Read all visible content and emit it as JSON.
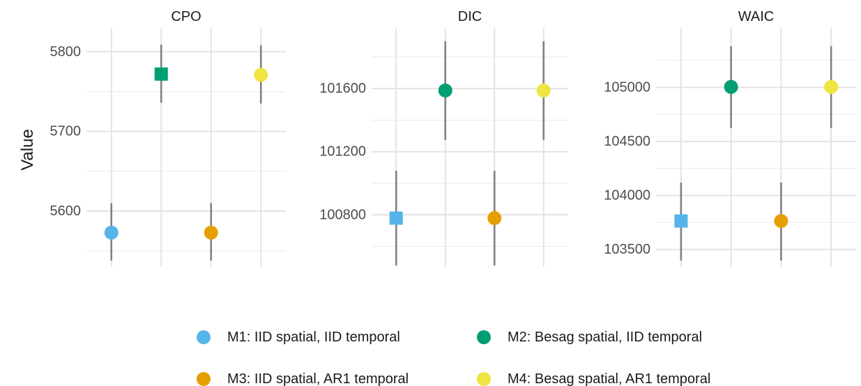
{
  "chart_data": {
    "type": "scatter",
    "ylabel": "Value",
    "models": [
      "M1",
      "M2",
      "M3",
      "M4"
    ],
    "legend": {
      "position": "bottom",
      "entries": [
        {
          "key": "M1",
          "label": "M1: IID spatial, IID temporal",
          "color": "#56B4E9"
        },
        {
          "key": "M2",
          "label": "M2: Besag spatial, IID temporal",
          "color": "#009E73"
        },
        {
          "key": "M3",
          "label": "M3: IID spatial, AR1 temporal",
          "color": "#E69F00"
        },
        {
          "key": "M4",
          "label": "M4: Besag spatial, AR1 temporal",
          "color": "#F0E442"
        }
      ]
    },
    "grid": true,
    "errorbar_color": "#808080",
    "panels": [
      {
        "title": "CPO",
        "ylim": [
          5530,
          5830
        ],
        "yticks": [
          5600,
          5700,
          5800
        ],
        "points": [
          {
            "model": "M1",
            "value": 5573,
            "lower": 5538,
            "upper": 5610,
            "shape": "circle"
          },
          {
            "model": "M2",
            "value": 5772,
            "lower": 5736,
            "upper": 5809,
            "shape": "square"
          },
          {
            "model": "M3",
            "value": 5573,
            "lower": 5538,
            "upper": 5610,
            "shape": "circle"
          },
          {
            "model": "M4",
            "value": 5771,
            "lower": 5735,
            "upper": 5808,
            "shape": "circle"
          }
        ]
      },
      {
        "title": "DIC",
        "ylim": [
          100470,
          101985
        ],
        "yticks": [
          100800,
          101200,
          101600
        ],
        "points": [
          {
            "model": "M1",
            "value": 100779,
            "lower": 100480,
            "upper": 101080,
            "shape": "square"
          },
          {
            "model": "M2",
            "value": 101588,
            "lower": 101275,
            "upper": 101900,
            "shape": "circle"
          },
          {
            "model": "M3",
            "value": 100779,
            "lower": 100480,
            "upper": 101080,
            "shape": "circle"
          },
          {
            "model": "M4",
            "value": 101588,
            "lower": 101275,
            "upper": 101900,
            "shape": "circle"
          }
        ]
      },
      {
        "title": "WAIC",
        "ylim": [
          103340,
          105550
        ],
        "yticks": [
          103500,
          104000,
          104500,
          105000
        ],
        "points": [
          {
            "model": "M1",
            "value": 103764,
            "lower": 103400,
            "upper": 104120,
            "shape": "square"
          },
          {
            "model": "M2",
            "value": 105004,
            "lower": 104625,
            "upper": 105380,
            "shape": "circle"
          },
          {
            "model": "M3",
            "value": 103764,
            "lower": 103400,
            "upper": 104120,
            "shape": "circle"
          },
          {
            "model": "M4",
            "value": 105004,
            "lower": 104625,
            "upper": 105380,
            "shape": "circle"
          }
        ]
      }
    ]
  }
}
